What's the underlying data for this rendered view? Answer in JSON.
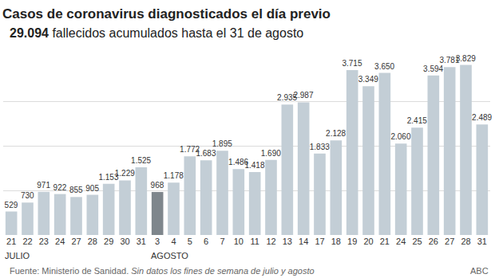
{
  "chart_data": {
    "type": "bar",
    "title": "Casos de coronavirus diagnosticados el día previo",
    "subtitle": "29.094 fallecidos acumulados hasta el 31 de agosto",
    "categories": [
      "21",
      "22",
      "23",
      "24",
      "27",
      "28",
      "29",
      "30",
      "31",
      "3",
      "4",
      "5",
      "6",
      "7",
      "10",
      "11",
      "12",
      "13",
      "14",
      "17",
      "18",
      "19",
      "20",
      "21",
      "24",
      "25",
      "26",
      "27",
      "28",
      "31"
    ],
    "values": [
      529,
      730,
      971,
      922,
      855,
      905,
      1153,
      1229,
      1525,
      968,
      1178,
      1772,
      1683,
      1895,
      1486,
      1418,
      1690,
      2935,
      2987,
      1833,
      2128,
      3715,
      3349,
      3650,
      2060,
      2415,
      3594,
      3781,
      3829,
      2489
    ],
    "value_labels": [
      "529",
      "730",
      "971",
      "922",
      "855",
      "905",
      "1.153",
      "1.229",
      "1.525",
      "968",
      "1.178",
      "1.772",
      "1.683",
      "1.895",
      "1.486",
      "1.418",
      "1.690",
      "2.935",
      "2.987",
      "1.833",
      "2.128",
      "3.715",
      "3.349",
      "3.650",
      "2.060",
      "2.415",
      "3.594",
      "3.781",
      "3.829",
      "2.489"
    ],
    "colors": [
      "#c3ced6",
      "#c3ced6",
      "#c3ced6",
      "#c3ced6",
      "#c3ced6",
      "#c3ced6",
      "#c3ced6",
      "#c3ced6",
      "#c3ced6",
      "#7e868c",
      "#c3ced6",
      "#c3ced6",
      "#c3ced6",
      "#c3ced6",
      "#c3ced6",
      "#c3ced6",
      "#c3ced6",
      "#c3ced6",
      "#c3ced6",
      "#c3ced6",
      "#c3ced6",
      "#c3ced6",
      "#c3ced6",
      "#c3ced6",
      "#c3ced6",
      "#c3ced6",
      "#c3ced6",
      "#c3ced6",
      "#c3ced6",
      "#c3ced6"
    ],
    "data_labels": true,
    "ylim": [
      0,
      4000
    ],
    "yticks": [
      0,
      1000,
      2000,
      3000,
      4000
    ],
    "grid": true,
    "tick_labels": "x",
    "annotations": [
      {
        "text": "JULIO",
        "x": 0
      },
      {
        "text": "AGOSTO",
        "x": 9
      }
    ],
    "source": "Fuente: Ministerio de Sanidad.",
    "note": "Sin datos los fines de semana de julio y agosto",
    "credit": "ABC"
  }
}
